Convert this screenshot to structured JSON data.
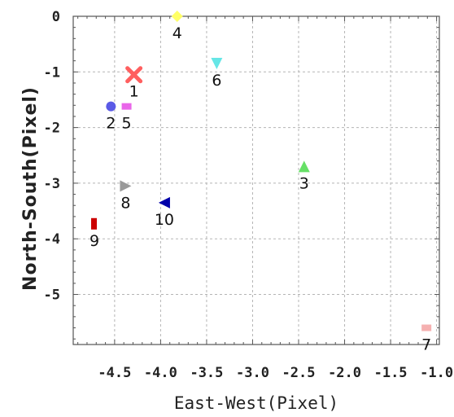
{
  "chart_data": {
    "type": "scatter",
    "title": "",
    "xlabel": "East-West(Pixel)",
    "ylabel": "North-South(Pixel)",
    "xlim": [
      -4.95,
      -0.97
    ],
    "ylim": [
      -5.9,
      0
    ],
    "grid": true,
    "xticks": [
      -4.5,
      -4.0,
      -3.5,
      -3.0,
      -2.5,
      -2.0,
      -1.5,
      -1.0
    ],
    "xtick_labels": [
      "-4.5",
      "-4.0",
      "-3.5",
      "-3.0",
      "-2.5",
      "-2.0",
      "-1.5",
      "-1.0"
    ],
    "yticks": [
      0,
      -1,
      -2,
      -3,
      -4,
      -5
    ],
    "ytick_labels": [
      "0",
      "-1",
      "-2",
      "-3",
      "-4",
      "-5"
    ],
    "points": [
      {
        "label": "1",
        "x": -4.29,
        "y": -1.05,
        "marker": "x",
        "color": "#ff5f5f"
      },
      {
        "label": "2",
        "x": -4.54,
        "y": -1.62,
        "marker": "circle",
        "color": "#5a5ae6"
      },
      {
        "label": "3",
        "x": -2.44,
        "y": -2.7,
        "marker": "triangle-up",
        "color": "#66e066"
      },
      {
        "label": "4",
        "x": -3.82,
        "y": 0.0,
        "marker": "diamond",
        "color": "#ffff66"
      },
      {
        "label": "5",
        "x": -4.37,
        "y": -1.62,
        "marker": "square",
        "color": "#e966e9"
      },
      {
        "label": "6",
        "x": -3.39,
        "y": -0.85,
        "marker": "triangle-down",
        "color": "#66e6e6"
      },
      {
        "label": "7",
        "x": -1.11,
        "y": -5.6,
        "marker": "square",
        "color": "#f5b0b0"
      },
      {
        "label": "8",
        "x": -4.38,
        "y": -3.05,
        "marker": "triangle-right",
        "color": "#999999"
      },
      {
        "label": "9",
        "x": -4.72,
        "y": -3.73,
        "marker": "rect-tall",
        "color": "#cc0000"
      },
      {
        "label": "10",
        "x": -3.96,
        "y": -3.35,
        "marker": "triangle-left",
        "color": "#0000aa"
      }
    ]
  }
}
